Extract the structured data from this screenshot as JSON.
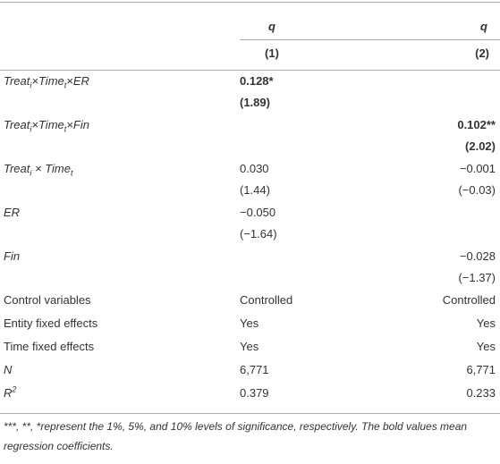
{
  "header": {
    "columns": [
      "q",
      "q"
    ],
    "numbers": [
      "(1)",
      "(2)"
    ]
  },
  "table": {
    "rows": [
      {
        "italic": true,
        "label": [
          {
            "text": "Treat"
          },
          {
            "sub": "i"
          },
          {
            "text": "×Time"
          },
          {
            "sub": "t"
          },
          {
            "text": "×ER"
          }
        ],
        "cells": [
          {
            "bold": true,
            "lines": [
              "0.128*",
              "(1.89)"
            ]
          },
          {
            "lines": []
          }
        ]
      },
      {
        "italic": true,
        "label": [
          {
            "text": "Treat"
          },
          {
            "sub": "i"
          },
          {
            "text": "×Time"
          },
          {
            "sub": "t"
          },
          {
            "text": "×Fin"
          }
        ],
        "cells": [
          {
            "lines": []
          },
          {
            "bold": true,
            "lines": [
              "0.102**",
              "(2.02)"
            ]
          }
        ]
      },
      {
        "italic": true,
        "label": [
          {
            "text": "Treat"
          },
          {
            "sub": "i"
          },
          {
            "text": " × Time"
          },
          {
            "sub": "t"
          }
        ],
        "cells": [
          {
            "lines": [
              "0.030",
              "(1.44)"
            ]
          },
          {
            "lines": [
              "−0.001",
              "(−0.03)"
            ]
          }
        ]
      },
      {
        "italic": true,
        "label": [
          {
            "text": "ER"
          }
        ],
        "cells": [
          {
            "lines": [
              "−0.050",
              "(−1.64)"
            ]
          },
          {
            "lines": []
          }
        ]
      },
      {
        "italic": true,
        "label": [
          {
            "text": "Fin"
          }
        ],
        "cells": [
          {
            "lines": []
          },
          {
            "lines": [
              "−0.028",
              "(−1.37)"
            ]
          }
        ]
      },
      {
        "label": [
          {
            "text": "Control variables"
          }
        ],
        "cells": [
          {
            "lines": [
              "Controlled"
            ]
          },
          {
            "lines": [
              "Controlled"
            ]
          }
        ]
      },
      {
        "label": [
          {
            "text": "Entity fixed effects"
          }
        ],
        "cells": [
          {
            "lines": [
              "Yes"
            ]
          },
          {
            "lines": [
              "Yes"
            ]
          }
        ]
      },
      {
        "label": [
          {
            "text": "Time fixed effects"
          }
        ],
        "cells": [
          {
            "lines": [
              "Yes"
            ]
          },
          {
            "lines": [
              "Yes"
            ]
          }
        ]
      },
      {
        "italic": true,
        "label": [
          {
            "text": "N"
          }
        ],
        "cells": [
          {
            "lines": [
              "6,771"
            ]
          },
          {
            "lines": [
              "6,771"
            ]
          }
        ]
      },
      {
        "italic": true,
        "label": [
          {
            "text": "R"
          },
          {
            "sup": "2"
          }
        ],
        "cells": [
          {
            "lines": [
              "0.379"
            ]
          },
          {
            "lines": [
              "0.233"
            ]
          }
        ]
      }
    ]
  },
  "footnote": "***, **, *represent the 1%, 5%, and 10% levels of significance, respectively. The bold values mean regression coefficients."
}
